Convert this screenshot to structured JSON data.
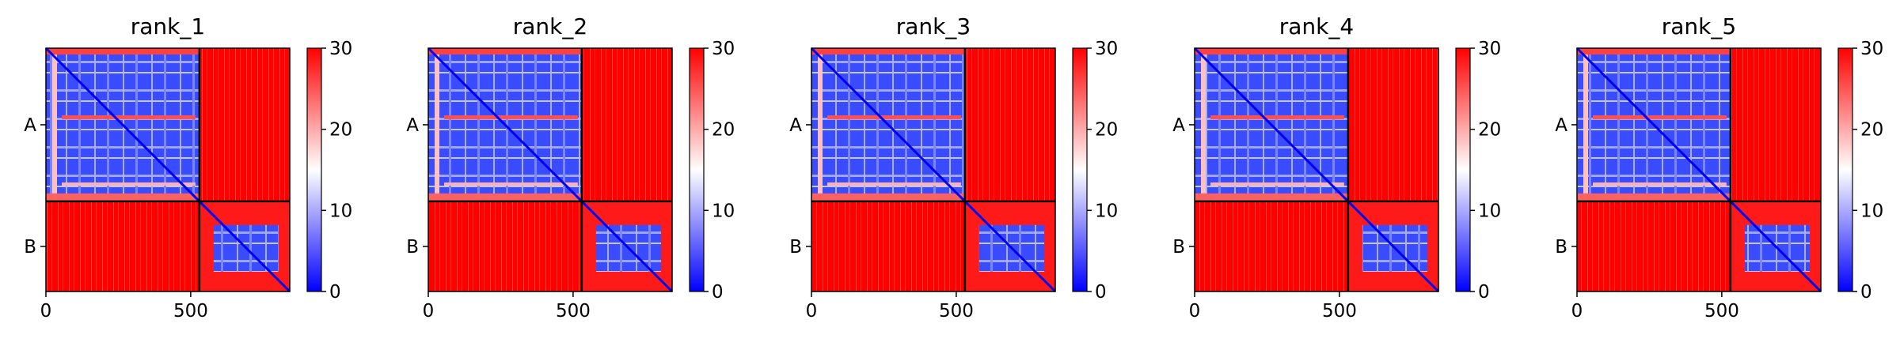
{
  "chart_data": [
    {
      "type": "heatmap",
      "title": "rank_1",
      "x_ticks": [
        0,
        500
      ],
      "x_tick_labels": [
        "0",
        "500"
      ],
      "x_range": [
        0,
        842
      ],
      "y_range": [
        0,
        842
      ],
      "chain_boundary": 530,
      "y_tick_labels": [
        "A",
        "B"
      ],
      "colorbar": {
        "range": [
          0,
          30
        ],
        "ticks": [
          0,
          10,
          20,
          30
        ],
        "tick_labels": [
          "0",
          "10",
          "20",
          "30"
        ],
        "colors": [
          "#0000ff",
          "#ffffff",
          "#ff0000"
        ]
      },
      "grid": false,
      "legend": "none"
    },
    {
      "type": "heatmap",
      "title": "rank_2",
      "x_ticks": [
        0,
        500
      ],
      "x_tick_labels": [
        "0",
        "500"
      ],
      "x_range": [
        0,
        842
      ],
      "y_range": [
        0,
        842
      ],
      "chain_boundary": 530,
      "y_tick_labels": [
        "A",
        "B"
      ],
      "colorbar": {
        "range": [
          0,
          30
        ],
        "ticks": [
          0,
          10,
          20,
          30
        ],
        "tick_labels": [
          "0",
          "10",
          "20",
          "30"
        ],
        "colors": [
          "#0000ff",
          "#ffffff",
          "#ff0000"
        ]
      },
      "grid": false,
      "legend": "none"
    },
    {
      "type": "heatmap",
      "title": "rank_3",
      "x_ticks": [
        0,
        500
      ],
      "x_tick_labels": [
        "0",
        "500"
      ],
      "x_range": [
        0,
        842
      ],
      "y_range": [
        0,
        842
      ],
      "chain_boundary": 530,
      "y_tick_labels": [
        "A",
        "B"
      ],
      "colorbar": {
        "range": [
          0,
          30
        ],
        "ticks": [
          0,
          10,
          20,
          30
        ],
        "tick_labels": [
          "0",
          "10",
          "20",
          "30"
        ],
        "colors": [
          "#0000ff",
          "#ffffff",
          "#ff0000"
        ]
      },
      "grid": false,
      "legend": "none"
    },
    {
      "type": "heatmap",
      "title": "rank_4",
      "x_ticks": [
        0,
        500
      ],
      "x_tick_labels": [
        "0",
        "500"
      ],
      "x_range": [
        0,
        842
      ],
      "y_range": [
        0,
        842
      ],
      "chain_boundary": 530,
      "y_tick_labels": [
        "A",
        "B"
      ],
      "colorbar": {
        "range": [
          0,
          30
        ],
        "ticks": [
          0,
          10,
          20,
          30
        ],
        "tick_labels": [
          "0",
          "10",
          "20",
          "30"
        ],
        "colors": [
          "#0000ff",
          "#ffffff",
          "#ff0000"
        ]
      },
      "grid": false,
      "legend": "none"
    },
    {
      "type": "heatmap",
      "title": "rank_5",
      "x_ticks": [
        0,
        500
      ],
      "x_tick_labels": [
        "0",
        "500"
      ],
      "x_range": [
        0,
        842
      ],
      "y_range": [
        0,
        842
      ],
      "chain_boundary": 530,
      "y_tick_labels": [
        "A",
        "B"
      ],
      "colorbar": {
        "range": [
          0,
          30
        ],
        "ticks": [
          0,
          10,
          20,
          30
        ],
        "tick_labels": [
          "0",
          "10",
          "20",
          "30"
        ],
        "colors": [
          "#0000ff",
          "#ffffff",
          "#ff0000"
        ]
      },
      "grid": false,
      "legend": "none"
    }
  ]
}
